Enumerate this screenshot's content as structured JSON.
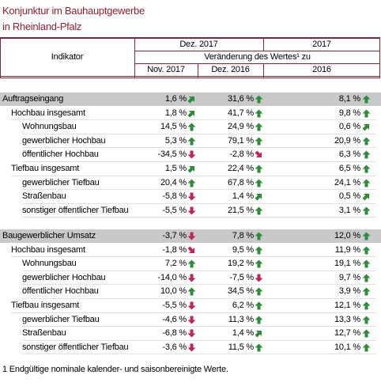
{
  "title": [
    "Konjunktur im Bauhauptgewerbe",
    "in Rheinland-Pfalz"
  ],
  "header": {
    "indicator": "Indikator",
    "period_a": "Dez. 2017",
    "period_b": "2017",
    "change": "Veränderung des Wertes¹ zu",
    "columns": [
      "Nov. 2017",
      "Dez. 2016",
      "2016"
    ]
  },
  "table": {
    "sections": [
      {
        "rows": [
          {
            "label": "Auftragseingang",
            "level": 0,
            "cells": [
              {
                "value": "1,6 %",
                "trend": "up-right"
              },
              {
                "value": "31,6 %",
                "trend": "up"
              },
              {
                "value": "8,1 %",
                "trend": "up"
              }
            ]
          },
          {
            "label": "Hochbau insgesamt",
            "level": 1,
            "cells": [
              {
                "value": "1,8 %",
                "trend": "up-right"
              },
              {
                "value": "41,7 %",
                "trend": "up"
              },
              {
                "value": "9,8 %",
                "trend": "up"
              }
            ]
          },
          {
            "label": "Wohnungsbau",
            "level": 2,
            "cells": [
              {
                "value": "14,5 %",
                "trend": "up"
              },
              {
                "value": "24,9 %",
                "trend": "up"
              },
              {
                "value": "0,6 %",
                "trend": "up-right"
              }
            ]
          },
          {
            "label": "gewerblicher Hochbau",
            "level": 2,
            "cells": [
              {
                "value": "5,3 %",
                "trend": "up"
              },
              {
                "value": "79,1 %",
                "trend": "up"
              },
              {
                "value": "20,9 %",
                "trend": "up"
              }
            ]
          },
          {
            "label": "öffentlicher Hochbau",
            "level": 2,
            "cells": [
              {
                "value": "-34,5 %",
                "trend": "down"
              },
              {
                "value": "-2,8 %",
                "trend": "down-right"
              },
              {
                "value": "6,3 %",
                "trend": "up"
              }
            ]
          },
          {
            "label": "Tiefbau insgesamt",
            "level": 1,
            "cells": [
              {
                "value": "1,5 %",
                "trend": "up-right"
              },
              {
                "value": "22,4 %",
                "trend": "up"
              },
              {
                "value": "6,5 %",
                "trend": "up"
              }
            ]
          },
          {
            "label": "gewerblicher Tiefbau",
            "level": 2,
            "cells": [
              {
                "value": "20,4 %",
                "trend": "up"
              },
              {
                "value": "67,8 %",
                "trend": "up"
              },
              {
                "value": "24,1 %",
                "trend": "up"
              }
            ]
          },
          {
            "label": "Straßenbau",
            "level": 2,
            "cells": [
              {
                "value": "-5,8 %",
                "trend": "down"
              },
              {
                "value": "1,4 %",
                "trend": "up-right"
              },
              {
                "value": "0,5 %",
                "trend": "up-right"
              }
            ]
          },
          {
            "label": "sonstiger öffentlicher Tiefbau",
            "level": 2,
            "cells": [
              {
                "value": "-5,5 %",
                "trend": "down"
              },
              {
                "value": "21,5 %",
                "trend": "up"
              },
              {
                "value": "3,1 %",
                "trend": "up"
              }
            ]
          }
        ]
      },
      {
        "rows": [
          {
            "label": "Baugewerblicher Umsatz",
            "level": 0,
            "cells": [
              {
                "value": "-3,7 %",
                "trend": "down"
              },
              {
                "value": "7,8 %",
                "trend": "up"
              },
              {
                "value": "12,0 %",
                "trend": "up"
              }
            ]
          },
          {
            "label": "Hochbau insgesamt",
            "level": 1,
            "cells": [
              {
                "value": "-1,8 %",
                "trend": "down-right"
              },
              {
                "value": "9,5 %",
                "trend": "up"
              },
              {
                "value": "11,9 %",
                "trend": "up"
              }
            ]
          },
          {
            "label": "Wohnungsbau",
            "level": 2,
            "cells": [
              {
                "value": "7,2 %",
                "trend": "up"
              },
              {
                "value": "19,2 %",
                "trend": "up"
              },
              {
                "value": "19,1 %",
                "trend": "up"
              }
            ]
          },
          {
            "label": "gewerblicher Hochbau",
            "level": 2,
            "cells": [
              {
                "value": "-14,0 %",
                "trend": "down"
              },
              {
                "value": "-7,5 %",
                "trend": "down"
              },
              {
                "value": "9,7 %",
                "trend": "up"
              }
            ]
          },
          {
            "label": "öffentlicher Hochbau",
            "level": 2,
            "cells": [
              {
                "value": "10,0 %",
                "trend": "up"
              },
              {
                "value": "34,5 %",
                "trend": "up"
              },
              {
                "value": "3,9 %",
                "trend": "up"
              }
            ]
          },
          {
            "label": "Tiefbau insgesamt",
            "level": 1,
            "cells": [
              {
                "value": "-5,5 %",
                "trend": "down"
              },
              {
                "value": "6,2 %",
                "trend": "up"
              },
              {
                "value": "12,1 %",
                "trend": "up"
              }
            ]
          },
          {
            "label": "gewerblicher Tiefbau",
            "level": 2,
            "cells": [
              {
                "value": "-4,6 %",
                "trend": "down"
              },
              {
                "value": "11,3 %",
                "trend": "up"
              },
              {
                "value": "13,3 %",
                "trend": "up"
              }
            ]
          },
          {
            "label": "Straßenbau",
            "level": 2,
            "cells": [
              {
                "value": "-6,8 %",
                "trend": "down"
              },
              {
                "value": "1,4 %",
                "trend": "up-right"
              },
              {
                "value": "12,7 %",
                "trend": "up"
              }
            ]
          },
          {
            "label": "sonstiger öffentlicher Tiefbau",
            "level": 2,
            "cells": [
              {
                "value": "-3,6 %",
                "trend": "down"
              },
              {
                "value": "11,5 %",
                "trend": "up"
              },
              {
                "value": "10,1 %",
                "trend": "up"
              }
            ]
          }
        ]
      }
    ]
  },
  "footnote": "1 Endgültige nominale kalender- und saisonbereinigte Werte."
}
